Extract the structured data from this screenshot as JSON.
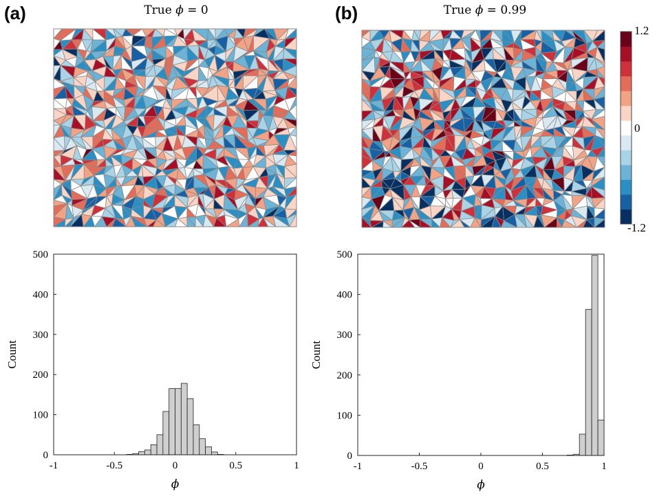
{
  "panels": [
    {
      "label": "(a)",
      "title_prefix": "True ",
      "title_symbol": "ϕ",
      "title_suffix": " = 0"
    },
    {
      "label": "(b)",
      "title_prefix": "True ",
      "title_symbol": "ϕ",
      "title_suffix": " = 0.99"
    }
  ],
  "colorbar": {
    "top_label": "1.2",
    "mid_label": "0",
    "bottom_label": "-1.2",
    "range": [
      -1.2,
      1.2
    ],
    "colors": [
      "#053061",
      "#1660a5",
      "#2a8fc4",
      "#6cb4d7",
      "#a9d3e6",
      "#d8e9f2",
      "#ffffff",
      "#fad4c4",
      "#f3a385",
      "#e56c58",
      "#d0303a",
      "#a90e27",
      "#6b0019"
    ]
  },
  "maps": [
    {
      "name": "map-a",
      "weights": [
        0.03,
        0.05,
        0.12,
        0.1,
        0.09,
        0.1,
        0.12,
        0.11,
        0.09,
        0.09,
        0.06,
        0.03,
        0.01
      ],
      "seed": 17
    },
    {
      "name": "map-b",
      "weights": [
        0.08,
        0.07,
        0.11,
        0.09,
        0.07,
        0.07,
        0.09,
        0.08,
        0.08,
        0.09,
        0.07,
        0.06,
        0.04
      ],
      "seed": 53
    }
  ],
  "chart_data": [
    {
      "type": "bar",
      "title": "",
      "xlabel": "ϕ",
      "ylabel": "Count",
      "xlim": [
        -1,
        1
      ],
      "ylim": [
        0,
        500
      ],
      "xticks": [
        "-1",
        "-0.5",
        "0",
        "0.5",
        "1"
      ],
      "yticks": [
        "0",
        "100",
        "200",
        "300",
        "400",
        "500"
      ],
      "bin_width": 0.05,
      "bins": [
        {
          "x": -0.375,
          "value": 1
        },
        {
          "x": -0.325,
          "value": 3
        },
        {
          "x": -0.275,
          "value": 8
        },
        {
          "x": -0.225,
          "value": 12
        },
        {
          "x": -0.175,
          "value": 25
        },
        {
          "x": -0.125,
          "value": 50
        },
        {
          "x": -0.075,
          "value": 108
        },
        {
          "x": -0.025,
          "value": 165
        },
        {
          "x": 0.025,
          "value": 165
        },
        {
          "x": 0.075,
          "value": 178
        },
        {
          "x": 0.125,
          "value": 140
        },
        {
          "x": 0.175,
          "value": 75
        },
        {
          "x": 0.225,
          "value": 40
        },
        {
          "x": 0.275,
          "value": 20
        },
        {
          "x": 0.325,
          "value": 7
        },
        {
          "x": 0.375,
          "value": 1
        }
      ],
      "grid": false
    },
    {
      "type": "bar",
      "title": "",
      "xlabel": "ϕ",
      "ylabel": "Count",
      "xlim": [
        -1,
        1
      ],
      "ylim": [
        0,
        500
      ],
      "xticks": [
        "-1",
        "-0.5",
        "0",
        "0.5",
        "1"
      ],
      "yticks": [
        "0",
        "100",
        "200",
        "300",
        "400",
        "500"
      ],
      "bin_width": 0.05,
      "bins": [
        {
          "x": 0.725,
          "value": 1
        },
        {
          "x": 0.775,
          "value": 3
        },
        {
          "x": 0.825,
          "value": 53
        },
        {
          "x": 0.875,
          "value": 363
        },
        {
          "x": 0.925,
          "value": 497
        },
        {
          "x": 0.975,
          "value": 88
        }
      ],
      "grid": false
    }
  ]
}
